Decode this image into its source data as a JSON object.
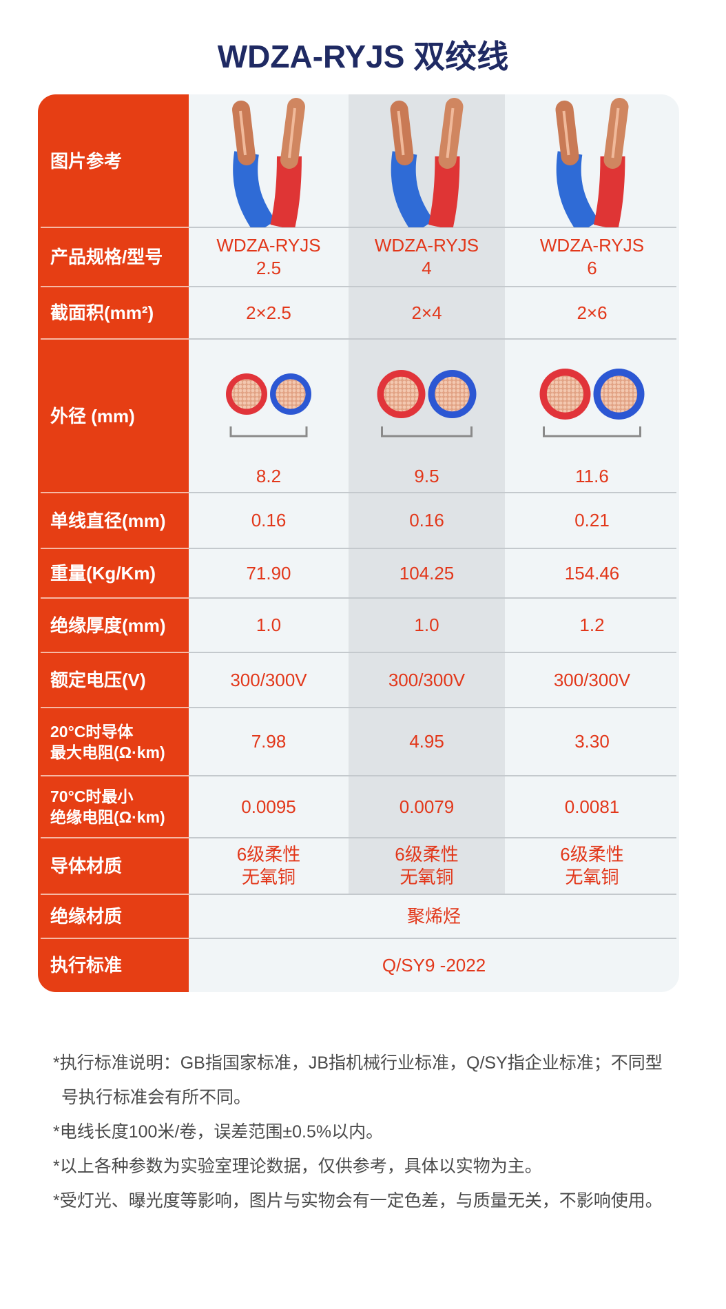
{
  "title": "WDZA-RYJS 双绞线",
  "table": {
    "rows": [
      {
        "label": [
          "图片参考"
        ]
      },
      {
        "label": [
          "产品规格/型号"
        ],
        "cells": [
          [
            "WDZA-RYJS",
            "2.5"
          ],
          [
            "WDZA-RYJS",
            "4"
          ],
          [
            "WDZA-RYJS",
            "6"
          ]
        ]
      },
      {
        "label": [
          "截面积(mm²)"
        ],
        "cells": [
          [
            "2×2.5"
          ],
          [
            "2×4"
          ],
          [
            "2×6"
          ]
        ]
      },
      {
        "label": [
          "外径 (mm)"
        ],
        "cells": [
          [
            "8.2"
          ],
          [
            "9.5"
          ],
          [
            "11.6"
          ]
        ]
      },
      {
        "label": [
          "单线直径(mm)"
        ],
        "cells": [
          [
            "0.16"
          ],
          [
            "0.16"
          ],
          [
            "0.21"
          ]
        ]
      },
      {
        "label": [
          "重量(Kg/Km)"
        ],
        "cells": [
          [
            "71.90"
          ],
          [
            "104.25"
          ],
          [
            "154.46"
          ]
        ]
      },
      {
        "label": [
          "绝缘厚度(mm)"
        ],
        "cells": [
          [
            "1.0"
          ],
          [
            "1.0"
          ],
          [
            "1.2"
          ]
        ]
      },
      {
        "label": [
          "额定电压(V)"
        ],
        "cells": [
          [
            "300/300V"
          ],
          [
            "300/300V"
          ],
          [
            "300/300V"
          ]
        ]
      },
      {
        "label": [
          "20°C时导体",
          "最大电阻(Ω·km)"
        ],
        "cells": [
          [
            "7.98"
          ],
          [
            "4.95"
          ],
          [
            "3.30"
          ]
        ]
      },
      {
        "label": [
          "70°C时最小",
          "绝缘电阻(Ω·km)"
        ],
        "cells": [
          [
            "0.0095"
          ],
          [
            "0.0079"
          ],
          [
            "0.0081"
          ]
        ]
      },
      {
        "label": [
          "导体材质"
        ],
        "cells": [
          [
            "6级柔性",
            "无氧铜"
          ],
          [
            "6级柔性",
            "无氧铜"
          ],
          [
            "6级柔性",
            "无氧铜"
          ]
        ]
      },
      {
        "label": [
          "绝缘材质"
        ],
        "cells": [
          [
            "聚烯烃"
          ]
        ]
      },
      {
        "label": [
          "执行标准"
        ],
        "cells": [
          [
            "Q/SY9 -2022"
          ]
        ]
      }
    ]
  },
  "notes": [
    "*执行标准说明：GB指国家标准，JB指机械行业标准，Q/SY指企业标准；不同型号执行标准会有所不同。",
    "*电线长度100米/卷，误差范围±0.5%以内。",
    "*以上各种参数为实验室理论数据，仅供参考，具体以实物为主。",
    "*受灯光、曝光度等影响，图片与实物会有一定色差，与质量无关，不影响使用。"
  ]
}
